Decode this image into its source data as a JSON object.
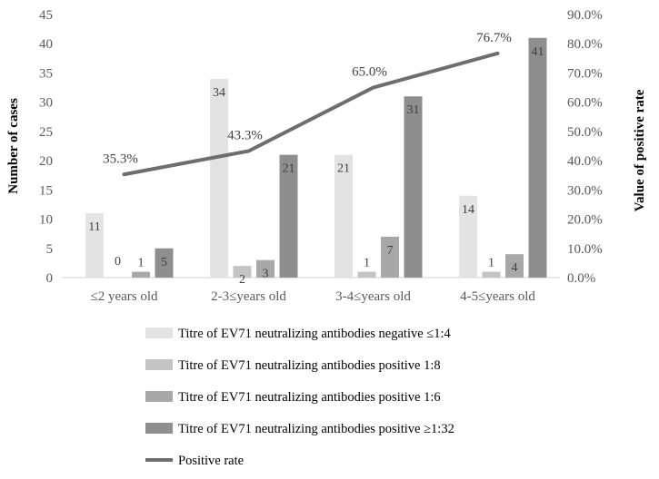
{
  "chart_data": {
    "type": "bar",
    "categories": [
      "≤2 years old",
      "2-3≤years old",
      "3-4≤years old",
      "4-5≤years old"
    ],
    "series": [
      {
        "name": "Titre of EV71 neutralizing antibodies negative ≤1:4",
        "values": [
          11,
          34,
          21,
          14
        ],
        "color": "#e3e3e3"
      },
      {
        "name": "Titre of EV71 neutralizing antibodies positive 1:8",
        "values": [
          0,
          2,
          1,
          1
        ],
        "color": "#c4c4c4"
      },
      {
        "name": "Titre of EV71 neutralizing antibodies positive 1:6",
        "values": [
          1,
          3,
          7,
          4
        ],
        "color": "#a8a8a8"
      },
      {
        "name": "Titre of EV71 neutralizing antibodies positive ≥1:32",
        "values": [
          5,
          21,
          31,
          41
        ],
        "color": "#8e8e8e"
      }
    ],
    "line_series": {
      "name": "Positive rate",
      "values": [
        35.3,
        43.3,
        65.0,
        76.7
      ],
      "labels": [
        "35.3%",
        "43.3%",
        "65.0%",
        "76.7%"
      ],
      "color": "#6e6e6e"
    },
    "ylabel": "Number of cases",
    "y2label": "Value of positive rate",
    "ylim": [
      0,
      45
    ],
    "y2lim": [
      0,
      90
    ],
    "yticks": [
      "0",
      "5",
      "10",
      "15",
      "20",
      "25",
      "30",
      "35",
      "40",
      "45"
    ],
    "y2ticks": [
      "0.0%",
      "10.0%",
      "20.0%",
      "30.0%",
      "40.0%",
      "50.0%",
      "60.0%",
      "70.0%",
      "80.0%",
      "90.0%"
    ],
    "grid": false,
    "legend_position": "bottom"
  }
}
